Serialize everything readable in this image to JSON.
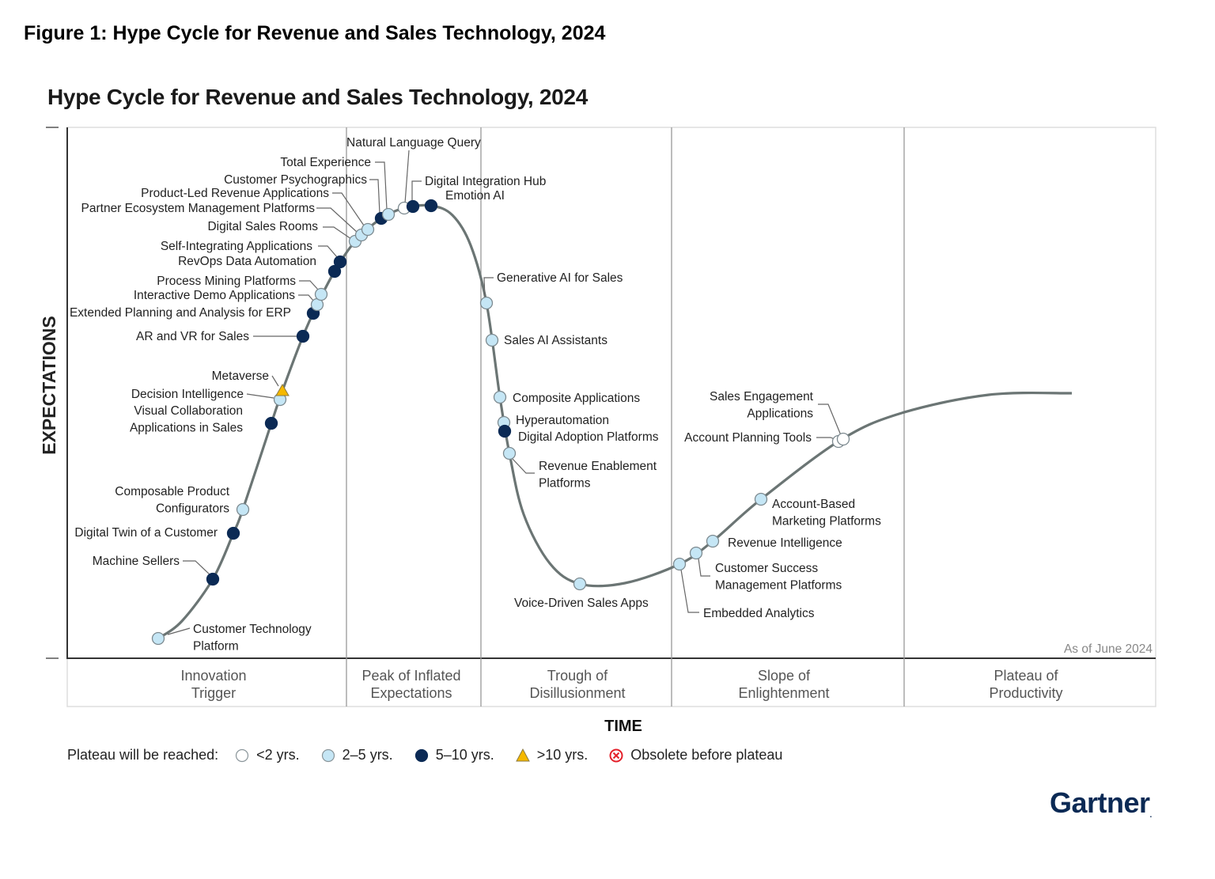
{
  "figure_title": "Figure 1: Hype Cycle for Revenue and Sales Technology, 2024",
  "chart_title": "Hype Cycle for Revenue and Sales Technology, 2024",
  "y_axis_label": "EXPECTATIONS",
  "x_axis_label": "TIME",
  "as_of": "As of June 2024",
  "logo_text": "Gartner",
  "phases": [
    [
      "Innovation",
      "Trigger"
    ],
    [
      "Peak of Inflated",
      "Expectations"
    ],
    [
      "Trough of",
      "Disillusionment"
    ],
    [
      "Slope of",
      "Enlightenment"
    ],
    [
      "Plateau of",
      "Productivity"
    ]
  ],
  "legend": {
    "title": "Plateau will be reached:",
    "items": [
      {
        "key": "lt2",
        "label": "<2 yrs.",
        "color": "#ffffff"
      },
      {
        "key": "2to5",
        "label": "2–5 yrs.",
        "color": "#c5e6f5"
      },
      {
        "key": "5to10",
        "label": "5–10 yrs.",
        "color": "#0b2a55"
      },
      {
        "key": "gt10",
        "label": ">10 yrs.",
        "color": "#f5b800"
      },
      {
        "key": "obsolete",
        "label": "Obsolete before plateau",
        "color": "#e4202a"
      }
    ]
  },
  "technologies": [
    {
      "name": [
        "Customer Technology",
        "Platform"
      ],
      "plateau": "2to5",
      "phase": "Innovation Trigger"
    },
    {
      "name": [
        "Machine Sellers"
      ],
      "plateau": "5to10",
      "phase": "Innovation Trigger"
    },
    {
      "name": [
        "Digital Twin of a Customer"
      ],
      "plateau": "5to10",
      "phase": "Innovation Trigger"
    },
    {
      "name": [
        "Composable Product",
        "Configurators"
      ],
      "plateau": "2to5",
      "phase": "Innovation Trigger"
    },
    {
      "name": [
        "Visual Collaboration",
        "Applications in Sales"
      ],
      "plateau": "5to10",
      "phase": "Innovation Trigger"
    },
    {
      "name": [
        "Decision Intelligence"
      ],
      "plateau": "2to5",
      "phase": "Innovation Trigger"
    },
    {
      "name": [
        "Metaverse"
      ],
      "plateau": "gt10",
      "phase": "Innovation Trigger"
    },
    {
      "name": [
        "AR and VR for Sales"
      ],
      "plateau": "5to10",
      "phase": "Innovation Trigger"
    },
    {
      "name": [
        "Extended Planning and Analysis for ERP"
      ],
      "plateau": "5to10",
      "phase": "Innovation Trigger"
    },
    {
      "name": [
        "Interactive Demo Applications"
      ],
      "plateau": "2to5",
      "phase": "Innovation Trigger"
    },
    {
      "name": [
        "Process Mining Platforms"
      ],
      "plateau": "2to5",
      "phase": "Innovation Trigger"
    },
    {
      "name": [
        "RevOps Data Automation"
      ],
      "plateau": "5to10",
      "phase": "Innovation Trigger"
    },
    {
      "name": [
        "Self-Integrating Applications"
      ],
      "plateau": "5to10",
      "phase": "Innovation Trigger"
    },
    {
      "name": [
        "Digital Sales Rooms"
      ],
      "plateau": "2to5",
      "phase": "Peak of Inflated Expectations"
    },
    {
      "name": [
        "Partner Ecosystem Management Platforms"
      ],
      "plateau": "2to5",
      "phase": "Peak of Inflated Expectations"
    },
    {
      "name": [
        "Product-Led Revenue Applications"
      ],
      "plateau": "2to5",
      "phase": "Peak of Inflated Expectations"
    },
    {
      "name": [
        "Customer Psychographics"
      ],
      "plateau": "5to10",
      "phase": "Peak of Inflated Expectations"
    },
    {
      "name": [
        "Total Experience"
      ],
      "plateau": "2to5",
      "phase": "Peak of Inflated Expectations"
    },
    {
      "name": [
        "Natural Language Query"
      ],
      "plateau": "lt2",
      "phase": "Peak of Inflated Expectations"
    },
    {
      "name": [
        "Digital Integration Hub"
      ],
      "plateau": "5to10",
      "phase": "Peak of Inflated Expectations"
    },
    {
      "name": [
        "Emotion AI"
      ],
      "plateau": "5to10",
      "phase": "Peak of Inflated Expectations"
    },
    {
      "name": [
        "Generative AI for Sales"
      ],
      "plateau": "2to5",
      "phase": "Trough of Disillusionment"
    },
    {
      "name": [
        "Sales AI Assistants"
      ],
      "plateau": "2to5",
      "phase": "Trough of Disillusionment"
    },
    {
      "name": [
        "Composite Applications"
      ],
      "plateau": "2to5",
      "phase": "Trough of Disillusionment"
    },
    {
      "name": [
        "Hyperautomation"
      ],
      "plateau": "2to5",
      "phase": "Trough of Disillusionment"
    },
    {
      "name": [
        "Digital Adoption Platforms"
      ],
      "plateau": "5to10",
      "phase": "Trough of Disillusionment"
    },
    {
      "name": [
        "Revenue Enablement",
        "Platforms"
      ],
      "plateau": "2to5",
      "phase": "Trough of Disillusionment"
    },
    {
      "name": [
        "Voice-Driven Sales Apps"
      ],
      "plateau": "2to5",
      "phase": "Trough of Disillusionment"
    },
    {
      "name": [
        "Embedded Analytics"
      ],
      "plateau": "2to5",
      "phase": "Slope of Enlightenment"
    },
    {
      "name": [
        "Customer Success",
        "Management Platforms"
      ],
      "plateau": "2to5",
      "phase": "Slope of Enlightenment"
    },
    {
      "name": [
        "Revenue Intelligence"
      ],
      "plateau": "2to5",
      "phase": "Slope of Enlightenment"
    },
    {
      "name": [
        "Account-Based",
        "Marketing Platforms"
      ],
      "plateau": "2to5",
      "phase": "Slope of Enlightenment"
    },
    {
      "name": [
        "Account Planning Tools"
      ],
      "plateau": "lt2",
      "phase": "Slope of Enlightenment"
    },
    {
      "name": [
        "Sales Engagement",
        "Applications"
      ],
      "plateau": "lt2",
      "phase": "Slope of Enlightenment"
    }
  ]
}
